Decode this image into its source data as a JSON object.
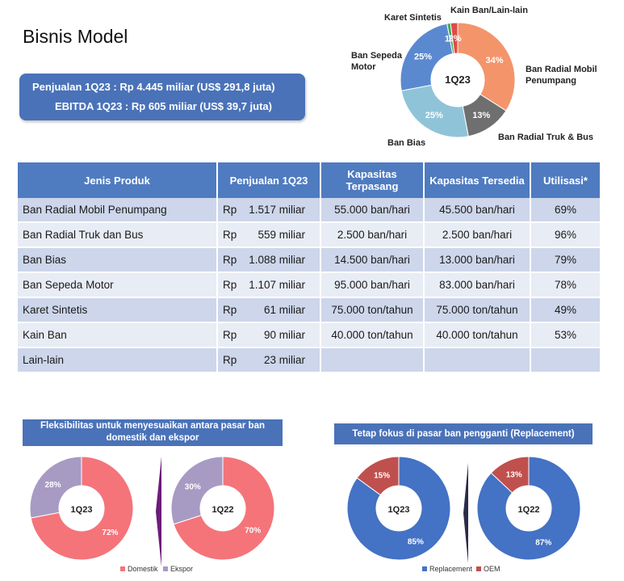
{
  "title": "Bisnis Model",
  "summary": {
    "line1": "Penjualan 1Q23 : Rp 4.445 miliar (US$ 291,8 juta)",
    "line2": "EBITDA 1Q23 : Rp  605 miliar (US$ 39,7 juta)"
  },
  "table": {
    "headers": [
      "Jenis Produk",
      "Penjualan 1Q23",
      "Kapasitas Terpasang",
      "Kapasitas Tersedia",
      "Utilisasi*"
    ],
    "rows": [
      {
        "produk": "Ban Radial Mobil Penumpang",
        "rp": "Rp",
        "amount": "1.517 miliar",
        "terpasang": "55.000 ban/hari",
        "tersedia": "45.500 ban/hari",
        "utilisasi": "69%"
      },
      {
        "produk": "Ban Radial Truk dan Bus",
        "rp": "Rp",
        "amount": "559 miliar",
        "terpasang": "2.500 ban/hari",
        "tersedia": "2.500 ban/hari",
        "utilisasi": "96%"
      },
      {
        "produk": "Ban Bias",
        "rp": "Rp",
        "amount": "1.088 miliar",
        "terpasang": "14.500 ban/hari",
        "tersedia": "13.000 ban/hari",
        "utilisasi": "79%"
      },
      {
        "produk": "Ban Sepeda Motor",
        "rp": "Rp",
        "amount": "1.107 miliar",
        "terpasang": "95.000 ban/hari",
        "tersedia": "83.000 ban/hari",
        "utilisasi": "78%"
      },
      {
        "produk": "Karet Sintetis",
        "rp": "Rp",
        "amount": "61 miliar",
        "terpasang": "75.000 ton/tahun",
        "tersedia": "75.000 ton/tahun",
        "utilisasi": "49%"
      },
      {
        "produk": "Kain Ban",
        "rp": "Rp",
        "amount": "90 miliar",
        "terpasang": "40.000 ton/tahun",
        "tersedia": "40.000 ton/tahun",
        "utilisasi": "53%"
      },
      {
        "produk": "Lain-lain",
        "rp": "Rp",
        "amount": "23 miliar",
        "terpasang": "",
        "tersedia": "",
        "utilisasi": ""
      }
    ]
  },
  "banners": {
    "left": "Fleksibilitas untuk menyesuaikan antara pasar ban domestik dan ekspor",
    "right": "Tetap fokus di pasar ban pengganti (Replacement)"
  },
  "legends": {
    "left": [
      {
        "label": "Domestik",
        "color": "#f4747a"
      },
      {
        "label": "Ekspor",
        "color": "#a79bc4"
      }
    ],
    "right": [
      {
        "label": "Replacement",
        "color": "#4472c4"
      },
      {
        "label": "OEM",
        "color": "#c0504d"
      }
    ]
  },
  "chart_data": [
    {
      "type": "pie",
      "title": "1Q23",
      "categories": [
        "Ban Radial Mobil Penumpang",
        "Ban Radial Truk & Bus",
        "Ban Bias",
        "Ban Sepeda Motor",
        "Karet Sintetis",
        "Kain Ban/Lain-lain"
      ],
      "values": [
        34,
        13,
        25,
        25,
        1,
        2
      ],
      "labels": [
        "34%",
        "13%",
        "25%",
        "25%",
        "1%",
        "2%"
      ],
      "colors": [
        "#f4946b",
        "#6f6f6f",
        "#8fc4d8",
        "#5b89d0",
        "#44aa55",
        "#e04a4a"
      ]
    },
    {
      "type": "pie",
      "title": "1Q23",
      "categories": [
        "Domestik",
        "Ekspor"
      ],
      "values": [
        72,
        28
      ],
      "labels": [
        "72%",
        "28%"
      ],
      "colors": [
        "#f4747a",
        "#a79bc4"
      ]
    },
    {
      "type": "pie",
      "title": "1Q22",
      "categories": [
        "Domestik",
        "Ekspor"
      ],
      "values": [
        70,
        30
      ],
      "labels": [
        "70%",
        "30%"
      ],
      "colors": [
        "#f4747a",
        "#a79bc4"
      ]
    },
    {
      "type": "pie",
      "title": "1Q23",
      "categories": [
        "Replacement",
        "OEM"
      ],
      "values": [
        85,
        15
      ],
      "labels": [
        "85%",
        "15%"
      ],
      "colors": [
        "#4472c4",
        "#c0504d"
      ]
    },
    {
      "type": "pie",
      "title": "1Q22",
      "categories": [
        "Replacement",
        "OEM"
      ],
      "values": [
        87,
        13
      ],
      "labels": [
        "87%",
        "13%"
      ],
      "colors": [
        "#4472c4",
        "#c0504d"
      ]
    }
  ]
}
